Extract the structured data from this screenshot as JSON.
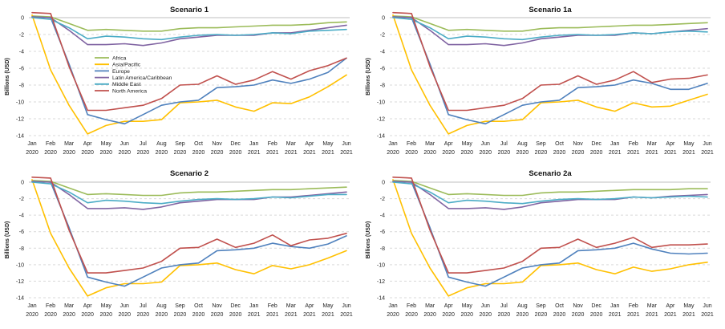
{
  "chart_data": [
    {
      "type": "line",
      "title": "Scenario 1",
      "ylabel": "Billions (USD)",
      "ylim": [
        -14,
        0
      ],
      "yticks": [
        0,
        -2,
        -4,
        -6,
        -8,
        -10,
        -12,
        -14
      ],
      "categories": [
        {
          "month": "Jan",
          "year": "2020"
        },
        {
          "month": "Feb",
          "year": "2020"
        },
        {
          "month": "Mar",
          "year": "2020"
        },
        {
          "month": "Apr",
          "year": "2020"
        },
        {
          "month": "May",
          "year": "2020"
        },
        {
          "month": "Jun",
          "year": "2020"
        },
        {
          "month": "Jul",
          "year": "2020"
        },
        {
          "month": "Aug",
          "year": "2020"
        },
        {
          "month": "Sep",
          "year": "2020"
        },
        {
          "month": "Oct",
          "year": "2020"
        },
        {
          "month": "Nov",
          "year": "2020"
        },
        {
          "month": "Dec",
          "year": "2020"
        },
        {
          "month": "Jan",
          "year": "2021"
        },
        {
          "month": "Feb",
          "year": "2021"
        },
        {
          "month": "Mar",
          "year": "2021"
        },
        {
          "month": "Apr",
          "year": "2021"
        },
        {
          "month": "May",
          "year": "2021"
        },
        {
          "month": "Jun",
          "year": "2021"
        }
      ],
      "legend": {
        "position": "center-left"
      },
      "series": [
        {
          "name": "Africa",
          "color": "#9bbb59",
          "values": [
            0.2,
            0.1,
            -0.7,
            -1.5,
            -1.4,
            -1.5,
            -1.6,
            -1.6,
            -1.3,
            -1.2,
            -1.2,
            -1.1,
            -1.0,
            -0.9,
            -0.9,
            -0.8,
            -0.6,
            -0.5
          ]
        },
        {
          "name": "Asia/Pacific",
          "color": "#ffc000",
          "values": [
            0.3,
            -6.2,
            -10.4,
            -13.8,
            -12.8,
            -12.3,
            -12.3,
            -12.1,
            -10.1,
            -10.0,
            -9.8,
            -10.6,
            -11.1,
            -10.1,
            -10.2,
            -9.4,
            -8.2,
            -6.8
          ]
        },
        {
          "name": "Europe",
          "color": "#4f81bd",
          "values": [
            0.1,
            0.0,
            -5.5,
            -11.5,
            -12.1,
            -12.6,
            -11.5,
            -10.4,
            -10.0,
            -9.8,
            -8.3,
            -8.2,
            -8.0,
            -7.4,
            -7.8,
            -7.3,
            -6.5,
            -4.8
          ]
        },
        {
          "name": "Latin America/Caribbean",
          "color": "#8064a2",
          "values": [
            0.1,
            0.0,
            -1.5,
            -3.2,
            -3.2,
            -3.1,
            -3.3,
            -3.0,
            -2.5,
            -2.3,
            -2.1,
            -2.1,
            -2.1,
            -1.8,
            -1.8,
            -1.5,
            -1.2,
            -0.9
          ]
        },
        {
          "name": "Middle East",
          "color": "#4bacc6",
          "values": [
            0.0,
            -0.2,
            -1.2,
            -2.5,
            -2.2,
            -2.3,
            -2.5,
            -2.6,
            -2.3,
            -2.1,
            -2.0,
            -2.1,
            -2.0,
            -1.8,
            -1.9,
            -1.6,
            -1.5,
            -1.4
          ]
        },
        {
          "name": "North America",
          "color": "#c0504d",
          "values": [
            0.6,
            0.5,
            -5.8,
            -11.0,
            -11.0,
            -10.7,
            -10.4,
            -9.6,
            -8.0,
            -7.9,
            -6.9,
            -7.9,
            -7.4,
            -6.4,
            -7.3,
            -6.3,
            -5.7,
            -4.8
          ]
        }
      ]
    },
    {
      "type": "line",
      "title": "Scenario 1a",
      "ylabel": "Billions (USD)",
      "ylim": [
        -14,
        0
      ],
      "yticks": [
        0,
        -2,
        -4,
        -6,
        -8,
        -10,
        -12,
        -14
      ],
      "categories": [
        {
          "month": "Jan",
          "year": "2020"
        },
        {
          "month": "Feb",
          "year": "2020"
        },
        {
          "month": "Mar",
          "year": "2020"
        },
        {
          "month": "Apr",
          "year": "2020"
        },
        {
          "month": "May",
          "year": "2020"
        },
        {
          "month": "Jun",
          "year": "2020"
        },
        {
          "month": "Jul",
          "year": "2020"
        },
        {
          "month": "Aug",
          "year": "2020"
        },
        {
          "month": "Sep",
          "year": "2020"
        },
        {
          "month": "Oct",
          "year": "2020"
        },
        {
          "month": "Nov",
          "year": "2020"
        },
        {
          "month": "Dec",
          "year": "2020"
        },
        {
          "month": "Jan",
          "year": "2021"
        },
        {
          "month": "Feb",
          "year": "2021"
        },
        {
          "month": "Mar",
          "year": "2021"
        },
        {
          "month": "Apr",
          "year": "2021"
        },
        {
          "month": "May",
          "year": "2021"
        },
        {
          "month": "Jun",
          "year": "2021"
        }
      ],
      "series": [
        {
          "name": "Africa",
          "color": "#9bbb59",
          "values": [
            0.2,
            0.1,
            -0.7,
            -1.5,
            -1.4,
            -1.5,
            -1.6,
            -1.6,
            -1.3,
            -1.2,
            -1.2,
            -1.1,
            -1.0,
            -0.9,
            -0.9,
            -0.8,
            -0.7,
            -0.6
          ]
        },
        {
          "name": "Asia/Pacific",
          "color": "#ffc000",
          "values": [
            0.3,
            -6.2,
            -10.4,
            -13.8,
            -12.8,
            -12.3,
            -12.3,
            -12.1,
            -10.1,
            -10.0,
            -9.8,
            -10.6,
            -11.1,
            -10.1,
            -10.6,
            -10.5,
            -9.8,
            -9.1
          ]
        },
        {
          "name": "Europe",
          "color": "#4f81bd",
          "values": [
            0.1,
            0.0,
            -5.5,
            -11.5,
            -12.1,
            -12.6,
            -11.5,
            -10.4,
            -10.0,
            -9.8,
            -8.3,
            -8.2,
            -8.0,
            -7.4,
            -7.8,
            -8.5,
            -8.5,
            -7.8
          ]
        },
        {
          "name": "Latin America/Caribbean",
          "color": "#8064a2",
          "values": [
            0.1,
            0.0,
            -1.5,
            -3.2,
            -3.2,
            -3.1,
            -3.3,
            -3.0,
            -2.5,
            -2.3,
            -2.1,
            -2.1,
            -2.1,
            -1.8,
            -1.9,
            -1.7,
            -1.5,
            -1.3
          ]
        },
        {
          "name": "Middle East",
          "color": "#4bacc6",
          "values": [
            0.0,
            -0.2,
            -1.2,
            -2.5,
            -2.2,
            -2.3,
            -2.5,
            -2.6,
            -2.3,
            -2.1,
            -2.0,
            -2.1,
            -2.0,
            -1.8,
            -1.9,
            -1.7,
            -1.6,
            -1.7
          ]
        },
        {
          "name": "North America",
          "color": "#c0504d",
          "values": [
            0.6,
            0.5,
            -5.8,
            -11.0,
            -11.0,
            -10.7,
            -10.4,
            -9.6,
            -8.0,
            -7.9,
            -6.9,
            -7.9,
            -7.4,
            -6.4,
            -7.7,
            -7.3,
            -7.2,
            -6.8
          ]
        }
      ]
    },
    {
      "type": "line",
      "title": "Scenario 2",
      "ylabel": "Billions (USD)",
      "ylim": [
        -14,
        0
      ],
      "yticks": [
        0,
        -2,
        -4,
        -6,
        -8,
        -10,
        -12,
        -14
      ],
      "categories": [
        {
          "month": "Jan",
          "year": "2020"
        },
        {
          "month": "Feb",
          "year": "2020"
        },
        {
          "month": "Mar",
          "year": "2020"
        },
        {
          "month": "Apr",
          "year": "2020"
        },
        {
          "month": "May",
          "year": "2020"
        },
        {
          "month": "Jun",
          "year": "2020"
        },
        {
          "month": "Jul",
          "year": "2020"
        },
        {
          "month": "Aug",
          "year": "2020"
        },
        {
          "month": "Sep",
          "year": "2020"
        },
        {
          "month": "Oct",
          "year": "2020"
        },
        {
          "month": "Nov",
          "year": "2020"
        },
        {
          "month": "Dec",
          "year": "2020"
        },
        {
          "month": "Jan",
          "year": "2021"
        },
        {
          "month": "Feb",
          "year": "2021"
        },
        {
          "month": "Mar",
          "year": "2021"
        },
        {
          "month": "Apr",
          "year": "2021"
        },
        {
          "month": "May",
          "year": "2021"
        },
        {
          "month": "Jun",
          "year": "2021"
        }
      ],
      "series": [
        {
          "name": "Africa",
          "color": "#9bbb59",
          "values": [
            0.2,
            0.1,
            -0.7,
            -1.5,
            -1.4,
            -1.5,
            -1.6,
            -1.6,
            -1.3,
            -1.2,
            -1.2,
            -1.1,
            -1.0,
            -0.9,
            -0.9,
            -0.8,
            -0.7,
            -0.6
          ]
        },
        {
          "name": "Asia/Pacific",
          "color": "#ffc000",
          "values": [
            0.3,
            -6.2,
            -10.4,
            -13.8,
            -12.8,
            -12.3,
            -12.3,
            -12.1,
            -10.1,
            -10.0,
            -9.8,
            -10.6,
            -11.1,
            -10.1,
            -10.5,
            -10.0,
            -9.2,
            -8.3
          ]
        },
        {
          "name": "Europe",
          "color": "#4f81bd",
          "values": [
            0.1,
            0.0,
            -5.5,
            -11.5,
            -12.1,
            -12.6,
            -11.5,
            -10.4,
            -10.0,
            -9.8,
            -8.3,
            -8.2,
            -8.0,
            -7.4,
            -7.8,
            -8.0,
            -7.5,
            -6.5
          ]
        },
        {
          "name": "Latin America/Caribbean",
          "color": "#8064a2",
          "values": [
            0.1,
            0.0,
            -1.5,
            -3.2,
            -3.2,
            -3.1,
            -3.3,
            -3.0,
            -2.5,
            -2.3,
            -2.1,
            -2.1,
            -2.1,
            -1.8,
            -1.8,
            -1.6,
            -1.4,
            -1.2
          ]
        },
        {
          "name": "Middle East",
          "color": "#4bacc6",
          "values": [
            0.0,
            -0.2,
            -1.2,
            -2.5,
            -2.2,
            -2.3,
            -2.5,
            -2.6,
            -2.3,
            -2.1,
            -2.0,
            -2.1,
            -2.0,
            -1.8,
            -1.9,
            -1.7,
            -1.5,
            -1.5
          ]
        },
        {
          "name": "North America",
          "color": "#c0504d",
          "values": [
            0.6,
            0.5,
            -5.8,
            -11.0,
            -11.0,
            -10.7,
            -10.4,
            -9.6,
            -8.0,
            -7.9,
            -6.9,
            -7.9,
            -7.4,
            -6.4,
            -7.7,
            -7.0,
            -6.8,
            -6.2
          ]
        }
      ]
    },
    {
      "type": "line",
      "title": "Scenario 2a",
      "ylabel": "Billions (USD)",
      "ylim": [
        -14,
        0
      ],
      "yticks": [
        0,
        -2,
        -4,
        -6,
        -8,
        -10,
        -12,
        -14
      ],
      "categories": [
        {
          "month": "Jan",
          "year": "2020"
        },
        {
          "month": "Feb",
          "year": "2020"
        },
        {
          "month": "Mar",
          "year": "2020"
        },
        {
          "month": "Apr",
          "year": "2020"
        },
        {
          "month": "May",
          "year": "2020"
        },
        {
          "month": "Jun",
          "year": "2020"
        },
        {
          "month": "Jul",
          "year": "2020"
        },
        {
          "month": "Aug",
          "year": "2020"
        },
        {
          "month": "Sep",
          "year": "2020"
        },
        {
          "month": "Oct",
          "year": "2020"
        },
        {
          "month": "Nov",
          "year": "2020"
        },
        {
          "month": "Dec",
          "year": "2020"
        },
        {
          "month": "Jan",
          "year": "2021"
        },
        {
          "month": "Feb",
          "year": "2021"
        },
        {
          "month": "Mar",
          "year": "2021"
        },
        {
          "month": "Apr",
          "year": "2021"
        },
        {
          "month": "May",
          "year": "2021"
        },
        {
          "month": "Jun",
          "year": "2021"
        }
      ],
      "series": [
        {
          "name": "Africa",
          "color": "#9bbb59",
          "values": [
            0.2,
            0.1,
            -0.7,
            -1.5,
            -1.4,
            -1.5,
            -1.6,
            -1.6,
            -1.3,
            -1.2,
            -1.2,
            -1.1,
            -1.0,
            -0.9,
            -0.9,
            -0.9,
            -0.8,
            -0.8
          ]
        },
        {
          "name": "Asia/Pacific",
          "color": "#ffc000",
          "values": [
            0.3,
            -6.2,
            -10.4,
            -13.8,
            -12.8,
            -12.3,
            -12.3,
            -12.1,
            -10.1,
            -10.0,
            -9.8,
            -10.6,
            -11.1,
            -10.3,
            -10.8,
            -10.5,
            -10.0,
            -9.7
          ]
        },
        {
          "name": "Europe",
          "color": "#4f81bd",
          "values": [
            0.1,
            0.0,
            -5.5,
            -11.5,
            -12.1,
            -12.6,
            -11.5,
            -10.4,
            -10.0,
            -9.8,
            -8.3,
            -8.2,
            -8.0,
            -7.4,
            -8.1,
            -8.6,
            -8.7,
            -8.6
          ]
        },
        {
          "name": "Latin America/Caribbean",
          "color": "#8064a2",
          "values": [
            0.1,
            0.0,
            -1.5,
            -3.2,
            -3.2,
            -3.1,
            -3.3,
            -3.0,
            -2.5,
            -2.3,
            -2.1,
            -2.1,
            -2.1,
            -1.8,
            -1.9,
            -1.7,
            -1.6,
            -1.5
          ]
        },
        {
          "name": "Middle East",
          "color": "#4bacc6",
          "values": [
            0.0,
            -0.2,
            -1.2,
            -2.5,
            -2.2,
            -2.3,
            -2.5,
            -2.6,
            -2.3,
            -2.1,
            -2.0,
            -2.1,
            -2.0,
            -1.8,
            -1.9,
            -1.8,
            -1.7,
            -1.8
          ]
        },
        {
          "name": "North America",
          "color": "#c0504d",
          "values": [
            0.6,
            0.5,
            -5.8,
            -11.0,
            -11.0,
            -10.7,
            -10.4,
            -9.6,
            -8.0,
            -7.9,
            -6.9,
            -7.9,
            -7.4,
            -6.7,
            -7.9,
            -7.6,
            -7.6,
            -7.5
          ]
        }
      ]
    }
  ]
}
